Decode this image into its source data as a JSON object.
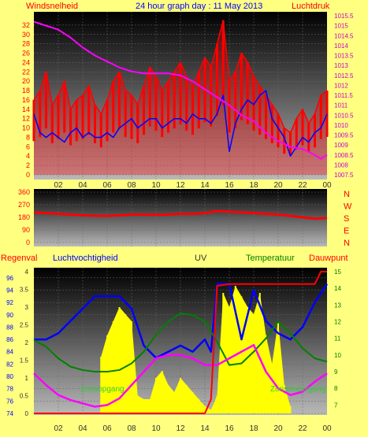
{
  "header": {
    "left": "Windsnelheid",
    "center": "24 hour graph day : 11 May 2013",
    "right": "Luchtdruk"
  },
  "colors": {
    "page_bg": "#ffff80",
    "panel_top": "#000000",
    "panel_bottom": "#b8b8b8",
    "red": "#ff0000",
    "blue": "#0000ff",
    "magenta": "#ff00ff",
    "green": "#008000",
    "yellow": "#ffff00",
    "black": "#000000",
    "label_dark": "#333333"
  },
  "chart_data": [
    {
      "id": "wind",
      "type": "line",
      "title": "",
      "x_ticks": [
        "02",
        "04",
        "06",
        "08",
        "10",
        "12",
        "14",
        "16",
        "18",
        "20",
        "22",
        "00"
      ],
      "left_axis": {
        "label": "Windsnelheid",
        "ticks": [
          "0",
          "2",
          "4",
          "6",
          "8",
          "10",
          "12",
          "14",
          "16",
          "18",
          "20",
          "22",
          "24",
          "26",
          "28",
          "30",
          "32"
        ],
        "ylim": [
          0,
          34
        ]
      },
      "right_axis": {
        "label": "Luchtdruk",
        "ticks": [
          "1007.5",
          "1008",
          "1008.5",
          "1009",
          "1009.5",
          "1010",
          "1010.5",
          "1011",
          "1011.5",
          "1012",
          "1012.5",
          "1013",
          "1013.5",
          "1014",
          "1014.5",
          "1015",
          "1015.5"
        ],
        "ylim": [
          1007.5,
          1015.5
        ]
      },
      "series": [
        {
          "name": "",
          "color": "#ff0000",
          "style": "gust-bars",
          "x": [
            0,
            0.5,
            1,
            1.5,
            2,
            2.5,
            3,
            3.5,
            4,
            4.5,
            5,
            5.5,
            6,
            6.5,
            7,
            7.5,
            8,
            8.5,
            9,
            9.5,
            10,
            10.5,
            11,
            11.5,
            12,
            12.5,
            13,
            13.5,
            14,
            14.5,
            15,
            15.5,
            16,
            16.5,
            17,
            17.5,
            18,
            18.5,
            19,
            19.5,
            20,
            20.5,
            21,
            21.5,
            22,
            22.5,
            23,
            23.5,
            24
          ],
          "values": [
            16,
            18,
            22,
            15,
            17,
            20,
            14,
            16,
            17,
            19,
            15,
            13,
            16,
            20,
            22,
            18,
            17,
            15,
            19,
            23,
            21,
            18,
            20,
            22,
            24,
            21,
            19,
            22,
            25,
            23,
            28,
            33,
            20,
            22,
            26,
            24,
            21,
            19,
            17,
            15,
            13,
            10,
            9,
            12,
            14,
            11,
            13,
            17,
            18
          ]
        },
        {
          "name": "",
          "color": "#0000ff",
          "x": [
            0,
            0.5,
            1,
            1.5,
            2,
            2.5,
            3,
            3.5,
            4,
            4.5,
            5,
            5.5,
            6,
            6.5,
            7,
            7.5,
            8,
            8.5,
            9,
            9.5,
            10,
            10.5,
            11,
            11.5,
            12,
            12.5,
            13,
            13.5,
            14,
            14.5,
            15,
            15.5,
            16,
            16.5,
            17,
            17.5,
            18,
            18.5,
            19,
            19.5,
            20,
            20.5,
            21,
            21.5,
            22,
            22.5,
            23,
            23.5,
            24
          ],
          "values": [
            13,
            9,
            8,
            9,
            8,
            7,
            9,
            10,
            8,
            9,
            8,
            8,
            9,
            8,
            10,
            11,
            12,
            10,
            11,
            12,
            12,
            10,
            11,
            12,
            12,
            11,
            13,
            12,
            12,
            11,
            13,
            17,
            5,
            11,
            14,
            16,
            15,
            17,
            18,
            12,
            10,
            8,
            4,
            6,
            8,
            7,
            9,
            10,
            13
          ]
        },
        {
          "name": "",
          "color": "#ff00ff",
          "axis": "right",
          "x": [
            0,
            1,
            2,
            3,
            4,
            5,
            6,
            7,
            8,
            9,
            10,
            11,
            12,
            13,
            14,
            15,
            16,
            17,
            18,
            19,
            20,
            21,
            22,
            23,
            23.5,
            24
          ],
          "values": [
            1015.2,
            1015.0,
            1014.8,
            1014.4,
            1013.9,
            1013.5,
            1013.2,
            1012.9,
            1012.7,
            1012.6,
            1012.6,
            1012.6,
            1012.5,
            1012.2,
            1011.8,
            1011.4,
            1011.0,
            1010.5,
            1010.2,
            1009.6,
            1009.2,
            1008.9,
            1008.8,
            1008.5,
            1008.3,
            1008.5
          ]
        }
      ]
    },
    {
      "id": "direction",
      "type": "line",
      "title": "",
      "left_axis": {
        "ticks": [
          "0",
          "90",
          "180",
          "270",
          "360"
        ],
        "ylim": [
          0,
          360
        ]
      },
      "right_axis": {
        "ticks": [
          "N",
          "W",
          "S",
          "E",
          "N"
        ]
      },
      "series": [
        {
          "name": "",
          "color": "#ff0000",
          "x": [
            0,
            1,
            2,
            3,
            4,
            5,
            6,
            7,
            8,
            9,
            10,
            11,
            12,
            13,
            14,
            15,
            16,
            17,
            18,
            19,
            20,
            21,
            22,
            23,
            24
          ],
          "values": [
            215,
            210,
            205,
            200,
            195,
            192,
            190,
            195,
            200,
            200,
            198,
            200,
            205,
            205,
            210,
            225,
            220,
            215,
            210,
            205,
            200,
            190,
            180,
            170,
            175
          ]
        }
      ]
    },
    {
      "id": "rain-humidity-uv-temp",
      "type": "line",
      "title": "",
      "x_ticks": [
        "02",
        "04",
        "06",
        "08",
        "10",
        "12",
        "14",
        "16",
        "18",
        "20",
        "22",
        "00"
      ],
      "legend": [
        "Regenval",
        "Luchtvochtigheid",
        "UV",
        "Temperatuur",
        "Dauwpunt"
      ],
      "humidity_axis": {
        "ticks": [
          "74",
          "76",
          "78",
          "80",
          "82",
          "84",
          "86",
          "88",
          "90",
          "92",
          "94",
          "96"
        ],
        "ylim": [
          74,
          97
        ]
      },
      "uv_axis": {
        "ticks": [
          "0",
          "0.5",
          "1",
          "1.5",
          "2",
          "2.5",
          "3",
          "3.5",
          "4"
        ],
        "ylim": [
          0,
          4
        ]
      },
      "temp_axis": {
        "ticks": [
          "7",
          "8",
          "9",
          "10",
          "11",
          "12",
          "13",
          "14",
          "15"
        ],
        "ylim": [
          6.5,
          15
        ]
      },
      "annotations": [
        "Zonsopgang",
        "Zonsondergang"
      ],
      "series": [
        {
          "name": "Luchtvochtigheid",
          "color": "#0000ff",
          "x": [
            0,
            1,
            2,
            3,
            4,
            5,
            6,
            7,
            8,
            9,
            10,
            11,
            12,
            13,
            14,
            14.5,
            15,
            16,
            17,
            18,
            19,
            20,
            21,
            22,
            23,
            24
          ],
          "values": [
            86,
            86,
            87,
            89,
            91,
            93,
            93,
            93,
            91,
            85,
            83,
            84,
            85,
            84,
            86,
            84,
            95,
            95,
            86,
            94,
            89,
            87,
            86,
            88,
            92,
            95
          ]
        },
        {
          "name": "Temperatuur",
          "color": "#008000",
          "x": [
            0,
            1,
            2,
            3,
            4,
            5,
            6,
            7,
            8,
            9,
            10,
            11,
            12,
            13,
            14,
            15,
            16,
            17,
            18,
            19,
            20,
            21,
            22,
            23,
            24
          ],
          "values": [
            10.9,
            10.5,
            9.8,
            9.3,
            9.1,
            9.0,
            9.0,
            9.1,
            9.5,
            10.2,
            11.2,
            12.0,
            12.5,
            12.4,
            12.0,
            10.8,
            9.4,
            9.5,
            10.2,
            11.0,
            12.0,
            11.3,
            10.4,
            9.8,
            9.6
          ]
        },
        {
          "name": "Dauwpunt",
          "color": "#ff00ff",
          "x": [
            0,
            1,
            2,
            3,
            4,
            5,
            6,
            7,
            8,
            9,
            10,
            11,
            12,
            13,
            14,
            15,
            16,
            17,
            18,
            19,
            20,
            21,
            22,
            23,
            24
          ],
          "values": [
            8.9,
            8.2,
            7.6,
            7.3,
            7.1,
            6.9,
            7.0,
            7.4,
            8.2,
            9.0,
            9.8,
            10.0,
            10.0,
            9.8,
            9.4,
            9.4,
            9.8,
            10.2,
            10.6,
            9.0,
            8.0,
            7.6,
            7.8,
            8.4,
            8.9
          ]
        },
        {
          "name": "Regenval",
          "color": "#ff0000",
          "x": [
            0,
            14,
            14.5,
            15,
            16,
            17,
            18,
            19,
            20,
            21,
            22,
            23,
            23.5,
            24
          ],
          "values": [
            0,
            0,
            0.4,
            3.6,
            3.65,
            3.65,
            3.65,
            3.65,
            3.65,
            3.65,
            3.65,
            3.65,
            4,
            4
          ]
        },
        {
          "name": "UV",
          "color": "#ffff00",
          "style": "fill",
          "x": [
            5.5,
            6,
            6.5,
            7,
            7.5,
            8,
            8.5,
            9,
            9.5,
            10,
            10.5,
            11,
            11.5,
            12,
            12.5,
            13,
            13.5,
            14,
            14.5,
            15,
            15.5,
            16,
            16.5,
            17,
            17.5,
            18,
            18.5,
            19,
            19.5,
            20,
            20.5,
            21
          ],
          "values": [
            1.6,
            2.2,
            2.6,
            3.0,
            2.8,
            2.6,
            0.5,
            0.4,
            0.4,
            1.0,
            1.2,
            0.8,
            0.6,
            1.0,
            0.8,
            0.6,
            0.4,
            0.2,
            0.1,
            0.5,
            3.4,
            3.0,
            3.6,
            3.3,
            3.0,
            2.8,
            3.4,
            2.2,
            1.4,
            2.6,
            0.8,
            0.2
          ]
        }
      ]
    }
  ]
}
